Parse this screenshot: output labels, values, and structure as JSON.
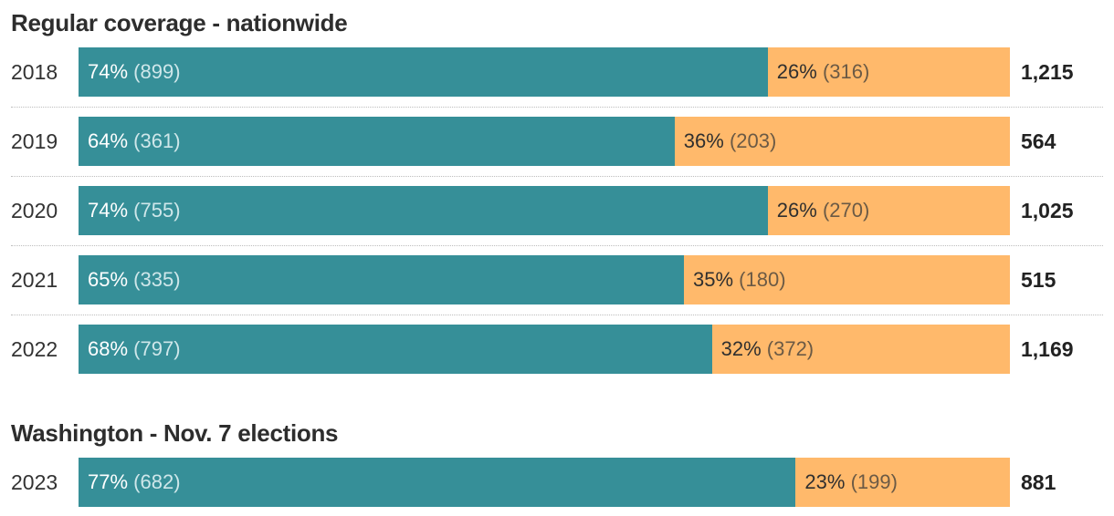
{
  "colors": {
    "segment_a": "#368f98",
    "segment_b": "#ffb96b"
  },
  "chart_data": [
    {
      "type": "bar",
      "orientation": "horizontal",
      "stacked": true,
      "normalized": true,
      "title": "Regular coverage - nationwide",
      "categories": [
        "2018",
        "2019",
        "2020",
        "2021",
        "2022"
      ],
      "series": [
        {
          "percents": [
            74,
            64,
            74,
            65,
            68
          ],
          "values": [
            899,
            361,
            755,
            335,
            797
          ],
          "pct_labels": [
            "74%",
            "64%",
            "74%",
            "65%",
            "68%"
          ],
          "count_labels": [
            "(899)",
            "(361)",
            "(755)",
            "(335)",
            "(797)"
          ]
        },
        {
          "percents": [
            26,
            36,
            26,
            35,
            32
          ],
          "values": [
            316,
            203,
            270,
            180,
            372
          ],
          "pct_labels": [
            "26%",
            "36%",
            "26%",
            "35%",
            "32%"
          ],
          "count_labels": [
            "(316)",
            "(203)",
            "(270)",
            "(180)",
            "(372)"
          ]
        }
      ],
      "totals": [
        "1,215",
        "564",
        "1,025",
        "515",
        "1,169"
      ]
    },
    {
      "type": "bar",
      "orientation": "horizontal",
      "stacked": true,
      "normalized": true,
      "title": "Washington - Nov. 7 elections",
      "categories": [
        "2023"
      ],
      "series": [
        {
          "percents": [
            77
          ],
          "values": [
            682
          ],
          "pct_labels": [
            "77%"
          ],
          "count_labels": [
            "(682)"
          ]
        },
        {
          "percents": [
            23
          ],
          "values": [
            199
          ],
          "pct_labels": [
            "23%"
          ],
          "count_labels": [
            "(199)"
          ]
        }
      ],
      "totals": [
        "881"
      ]
    }
  ]
}
